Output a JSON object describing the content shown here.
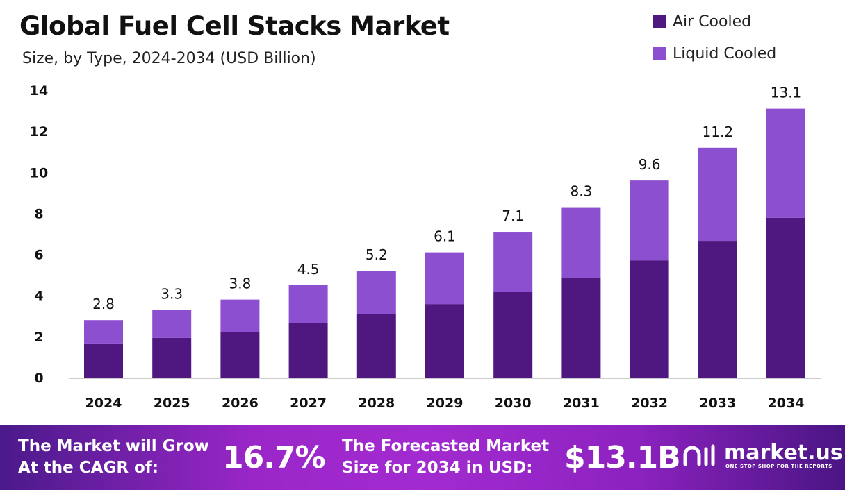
{
  "title": "Global Fuel Cell Stacks Market",
  "subtitle": "Size, by Type, 2024-2034 (USD Billion)",
  "colors": {
    "air_cooled": "#4f1780",
    "liquid_cooled": "#8c4fcf"
  },
  "chart_data": {
    "type": "bar",
    "stacked": true,
    "title": "Global Fuel Cell Stacks Market",
    "subtitle": "Size, by Type, 2024-2034 (USD Billion)",
    "categories": [
      "2024",
      "2025",
      "2026",
      "2027",
      "2028",
      "2029",
      "2030",
      "2031",
      "2032",
      "2033",
      "2034"
    ],
    "series": [
      {
        "name": "Air Cooled",
        "color": "#4f1780",
        "values": [
          1.66,
          1.93,
          2.23,
          2.64,
          3.08,
          3.58,
          4.19,
          4.87,
          5.71,
          6.66,
          7.78
        ]
      },
      {
        "name": "Liquid Cooled",
        "color": "#8c4fcf",
        "values": [
          1.14,
          1.37,
          1.57,
          1.86,
          2.12,
          2.52,
          2.91,
          3.43,
          3.89,
          4.54,
          5.32
        ]
      }
    ],
    "totals": [
      "2.8",
      "3.3",
      "3.8",
      "4.5",
      "5.2",
      "6.1",
      "7.1",
      "8.3",
      "9.6",
      "11.2",
      "13.1"
    ],
    "ylim": [
      0,
      14
    ],
    "yticks": [
      "0",
      "2",
      "4",
      "6",
      "8",
      "10",
      "12",
      "14"
    ],
    "grid": false,
    "legend": "top-right"
  },
  "footer": {
    "cagr_label_1": "The Market will Grow",
    "cagr_label_2": "At the CAGR of:",
    "cagr_value": "16.7%",
    "forecast_label_1": "The Forecasted Market",
    "forecast_label_2": "Size for 2034 in USD:",
    "forecast_value": "$13.1B",
    "logo_name": "market.us",
    "logo_tagline": "ONE STOP SHOP FOR THE REPORTS"
  }
}
